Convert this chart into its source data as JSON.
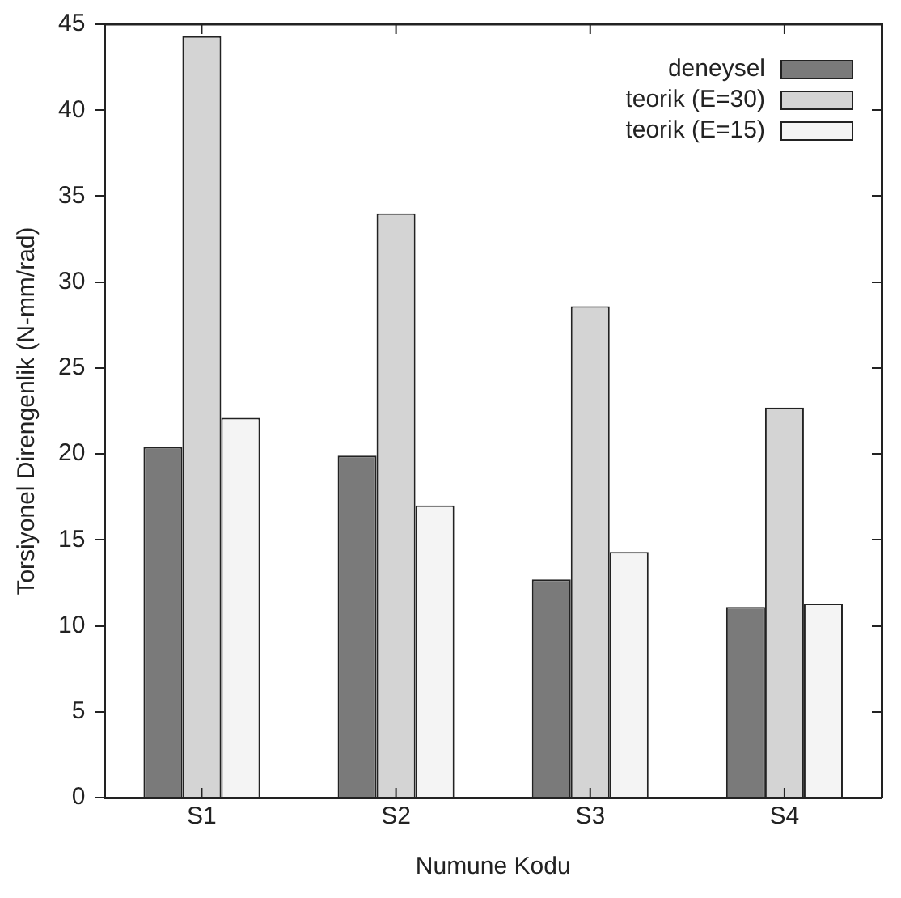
{
  "chart_data": {
    "type": "bar",
    "xlabel": "Numune Kodu",
    "ylabel": "Torsiyonel Direngenlik (N-mm/rad)",
    "categories": [
      "S1",
      "S2",
      "S3",
      "S4"
    ],
    "series": [
      {
        "name": "deneysel",
        "color": "#7a7a7a",
        "values": [
          20.4,
          19.9,
          12.7,
          11.1
        ]
      },
      {
        "name": "teorik (E=30)",
        "color": "#d4d4d4",
        "values": [
          44.3,
          34.0,
          28.6,
          22.7
        ]
      },
      {
        "name": "teorik (E=15)",
        "color": "#f4f4f4",
        "values": [
          22.1,
          17.0,
          14.3,
          11.3
        ]
      }
    ],
    "ylim": [
      0,
      45
    ],
    "yticks": [
      0,
      5,
      10,
      15,
      20,
      25,
      30,
      35,
      40,
      45
    ],
    "grid": false,
    "legend": "top right"
  }
}
